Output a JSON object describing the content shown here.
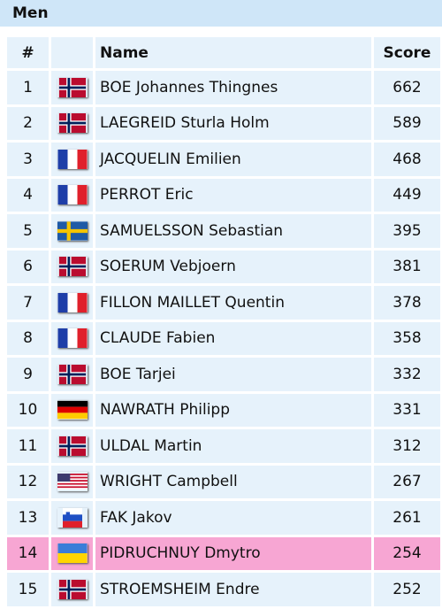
{
  "header": {
    "title": "Men"
  },
  "table": {
    "columns": [
      "#",
      "Name",
      "Score"
    ],
    "rows": [
      [
        1,
        "BOE Johannes Thingnes",
        662
      ],
      [
        2,
        "LAEGREID Sturla Holm",
        589
      ],
      [
        3,
        "JACQUELIN Emilien",
        468
      ],
      [
        4,
        "PERROT Eric",
        449
      ],
      [
        5,
        "SAMUELSSON Sebastian",
        395
      ],
      [
        6,
        "SOERUM Vebjoern",
        381
      ],
      [
        7,
        "FILLON MAILLET Quentin",
        378
      ],
      [
        8,
        "CLAUDE Fabien",
        358
      ],
      [
        9,
        "BOE Tarjei",
        332
      ],
      [
        10,
        "NAWRATH Philipp",
        331
      ],
      [
        11,
        "ULDAL Martin",
        312
      ],
      [
        12,
        "WRIGHT Campbell",
        267
      ],
      [
        13,
        "FAK Jakov",
        261
      ],
      [
        14,
        "PIDRUCHNUY Dmytro",
        254
      ],
      [
        15,
        "STROEMSHEIM Endre",
        252
      ]
    ]
  }
}
